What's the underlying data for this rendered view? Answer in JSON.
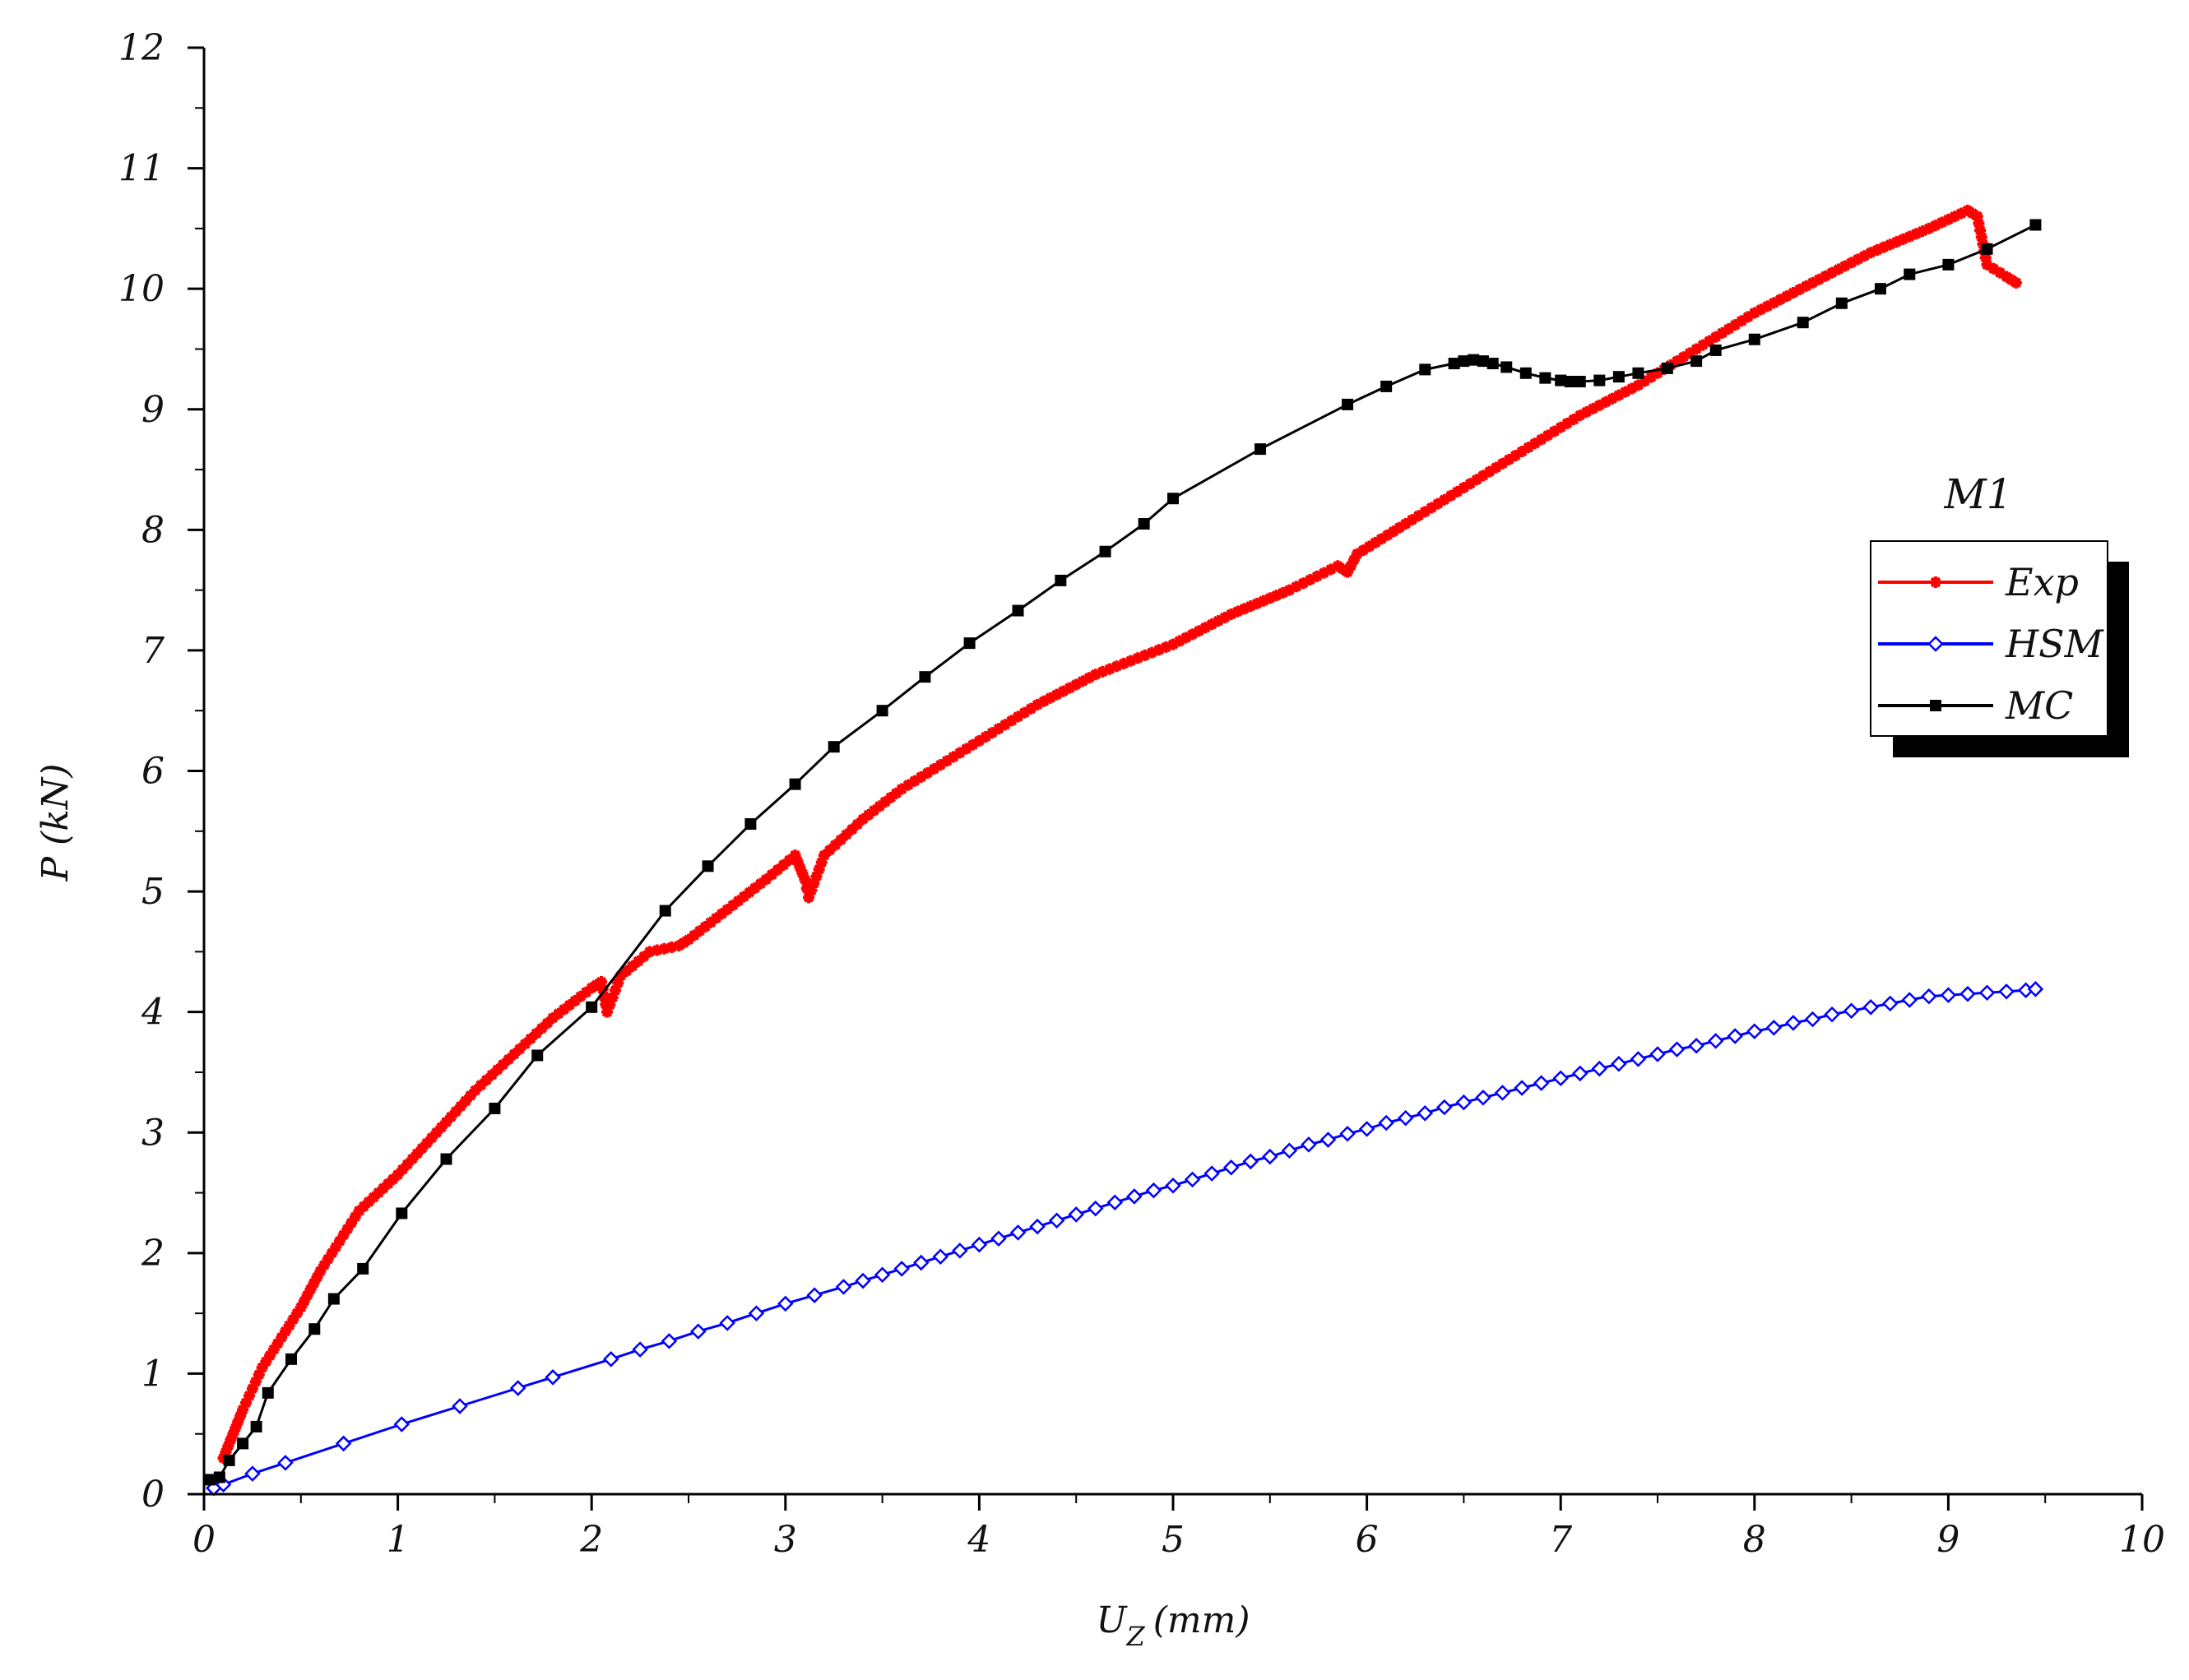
{
  "chart_data": {
    "type": "line",
    "xlabel": "U",
    "xlabel_sub": "Z",
    "xlabel_unit": "(mm)",
    "ylabel": "P (kN)",
    "xlim": [
      0,
      10
    ],
    "ylim": [
      0,
      12
    ],
    "x_ticks": [
      "0",
      "1",
      "2",
      "3",
      "4",
      "5",
      "6",
      "7",
      "8",
      "9",
      "10"
    ],
    "y_ticks": [
      "0",
      "1",
      "2",
      "3",
      "4",
      "5",
      "6",
      "7",
      "8",
      "9",
      "10",
      "11",
      "12"
    ],
    "grid": false,
    "legend": {
      "title": "M1",
      "placement": "right"
    },
    "series": [
      {
        "name": "Exp",
        "color": "#ff0000",
        "marker": "asterisk",
        "x": [
          0.1,
          0.15,
          0.2,
          0.3,
          0.4,
          0.5,
          0.6,
          0.7,
          0.8,
          0.9,
          1.0,
          1.2,
          1.4,
          1.6,
          1.8,
          2.0,
          2.05,
          2.08,
          2.15,
          2.3,
          2.45,
          2.5,
          2.7,
          2.9,
          3.05,
          3.1,
          3.12,
          3.2,
          3.4,
          3.6,
          3.8,
          4.0,
          4.3,
          4.6,
          5.0,
          5.3,
          5.6,
          5.85,
          5.9,
          5.95,
          6.2,
          6.5,
          6.8,
          7.1,
          7.4,
          7.7,
          8.0,
          8.3,
          8.6,
          8.9,
          9.1,
          9.15,
          9.2,
          9.3,
          9.35
        ],
        "y": [
          0.3,
          0.5,
          0.7,
          1.05,
          1.3,
          1.55,
          1.85,
          2.1,
          2.35,
          2.5,
          2.65,
          3.0,
          3.35,
          3.65,
          3.95,
          4.2,
          4.25,
          4.0,
          4.3,
          4.5,
          4.55,
          4.6,
          4.85,
          5.1,
          5.3,
          5.1,
          4.95,
          5.3,
          5.6,
          5.85,
          6.05,
          6.25,
          6.55,
          6.8,
          7.05,
          7.3,
          7.5,
          7.7,
          7.65,
          7.8,
          8.05,
          8.35,
          8.65,
          8.95,
          9.2,
          9.5,
          9.8,
          10.05,
          10.3,
          10.5,
          10.65,
          10.6,
          10.2,
          10.1,
          10.05
        ]
      },
      {
        "name": "HSM",
        "color": "#0000ff",
        "marker": "diamond-open",
        "x": [
          0.05,
          0.1,
          0.25,
          0.42,
          0.72,
          1.02,
          1.32,
          1.62,
          1.8,
          2.1,
          2.25,
          2.4,
          2.55,
          2.7,
          2.85,
          3.0,
          3.15,
          3.3,
          3.4,
          3.5,
          3.6,
          3.7,
          3.8,
          3.9,
          4.0,
          4.1,
          4.2,
          4.3,
          4.4,
          4.5,
          4.6,
          4.7,
          4.8,
          4.9,
          5.0,
          5.1,
          5.2,
          5.3,
          5.4,
          5.5,
          5.6,
          5.7,
          5.8,
          5.9,
          6.0,
          6.1,
          6.2,
          6.3,
          6.4,
          6.5,
          6.6,
          6.7,
          6.8,
          6.9,
          7.0,
          7.1,
          7.2,
          7.3,
          7.4,
          7.5,
          7.6,
          7.7,
          7.8,
          7.9,
          8.0,
          8.1,
          8.2,
          8.3,
          8.4,
          8.5,
          8.6,
          8.7,
          8.8,
          8.9,
          9.0,
          9.1,
          9.2,
          9.3,
          9.4,
          9.45
        ],
        "y": [
          0.05,
          0.08,
          0.17,
          0.26,
          0.42,
          0.58,
          0.73,
          0.88,
          0.97,
          1.12,
          1.2,
          1.27,
          1.35,
          1.42,
          1.5,
          1.58,
          1.65,
          1.72,
          1.77,
          1.82,
          1.87,
          1.92,
          1.97,
          2.02,
          2.07,
          2.12,
          2.17,
          2.22,
          2.27,
          2.32,
          2.37,
          2.42,
          2.47,
          2.52,
          2.56,
          2.61,
          2.66,
          2.71,
          2.76,
          2.8,
          2.85,
          2.9,
          2.94,
          2.99,
          3.03,
          3.08,
          3.12,
          3.16,
          3.21,
          3.25,
          3.29,
          3.33,
          3.37,
          3.41,
          3.45,
          3.49,
          3.53,
          3.57,
          3.61,
          3.65,
          3.69,
          3.72,
          3.76,
          3.8,
          3.84,
          3.87,
          3.91,
          3.94,
          3.98,
          4.01,
          4.04,
          4.07,
          4.1,
          4.13,
          4.14,
          4.15,
          4.16,
          4.17,
          4.18,
          4.19
        ]
      },
      {
        "name": "MC",
        "color": "#000000",
        "marker": "square-filled",
        "x": [
          0.03,
          0.08,
          0.13,
          0.2,
          0.27,
          0.33,
          0.45,
          0.57,
          0.67,
          0.82,
          1.02,
          1.25,
          1.5,
          1.72,
          2.0,
          2.38,
          2.6,
          2.82,
          3.05,
          3.25,
          3.5,
          3.72,
          3.95,
          4.2,
          4.42,
          4.65,
          4.85,
          5.0,
          5.45,
          5.9,
          6.1,
          6.3,
          6.45,
          6.5,
          6.55,
          6.6,
          6.65,
          6.72,
          6.82,
          6.92,
          7.0,
          7.05,
          7.1,
          7.2,
          7.3,
          7.4,
          7.55,
          7.7,
          7.8,
          8.0,
          8.25,
          8.45,
          8.65,
          8.8,
          9.0,
          9.2,
          9.45
        ],
        "y": [
          0.12,
          0.14,
          0.28,
          0.42,
          0.56,
          0.84,
          1.12,
          1.37,
          1.62,
          1.87,
          2.33,
          2.78,
          3.2,
          3.64,
          4.04,
          4.84,
          5.21,
          5.56,
          5.89,
          6.2,
          6.5,
          6.78,
          7.06,
          7.33,
          7.58,
          7.82,
          8.05,
          8.26,
          8.67,
          9.04,
          9.19,
          9.33,
          9.38,
          9.4,
          9.41,
          9.4,
          9.38,
          9.35,
          9.3,
          9.26,
          9.24,
          9.23,
          9.23,
          9.24,
          9.27,
          9.3,
          9.34,
          9.4,
          9.49,
          9.58,
          9.72,
          9.88,
          10.0,
          10.12,
          10.2,
          10.33,
          10.53
        ]
      }
    ]
  }
}
